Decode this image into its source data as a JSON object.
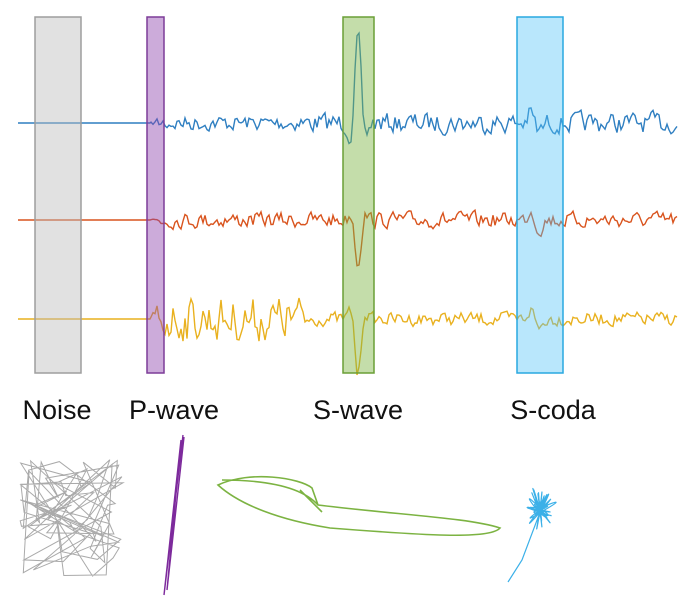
{
  "windows": [
    {
      "label": "Noise"
    },
    {
      "label": "P-wave"
    },
    {
      "label": "S-wave"
    },
    {
      "label": "S-coda"
    }
  ]
}
